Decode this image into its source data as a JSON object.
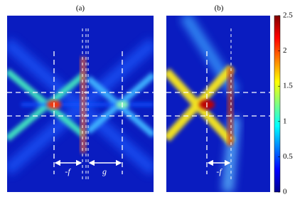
{
  "figure": {
    "panels": [
      {
        "label": "(a)",
        "annotations": [
          "-f",
          "g"
        ]
      },
      {
        "label": "(b)",
        "annotations": [
          "-f"
        ]
      }
    ],
    "colorbar": {
      "zlim": [
        0,
        2.5
      ],
      "zticks": [
        0,
        0.5,
        1,
        1.5,
        2,
        2.5
      ]
    }
  }
}
